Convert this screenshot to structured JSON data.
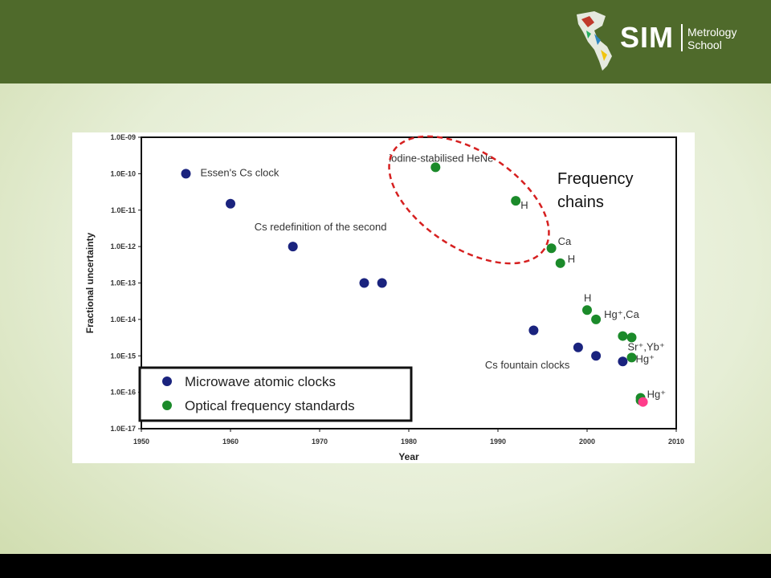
{
  "logo": {
    "name": "SIM",
    "line1": "Metrology",
    "line2": "School"
  },
  "annotation_freq": {
    "line1": "Frequency",
    "line2": "chains"
  },
  "colors": {
    "header": "#4f6a2b",
    "microwave": "#1a237e",
    "optical": "#1b8a2a",
    "hg_pink": "#ff3d8b",
    "ellipse": "#d62020"
  },
  "chart_data": {
    "type": "scatter",
    "xlabel": "Year",
    "ylabel": "Fractional uncertainty",
    "xlim": [
      1950,
      2010
    ],
    "ylim_exp": [
      -17,
      -9
    ],
    "y_scale": "log",
    "xticks": [
      "1950",
      "1960",
      "1970",
      "1980",
      "1990",
      "2000",
      "2010"
    ],
    "yticks": [
      "1.0E-17",
      "1.0E-16",
      "1.0E-15",
      "1.0E-14",
      "1.0E-13",
      "1.0E-12",
      "1.0E-11",
      "1.0E-10",
      "1.0E-09"
    ],
    "legend": {
      "placement": "bottom-left",
      "items": [
        "Microwave atomic clocks",
        "Optical frequency standards"
      ]
    },
    "series": [
      {
        "name": "Microwave atomic clocks",
        "points": [
          [
            1955,
            1e-10
          ],
          [
            1960,
            1.5e-11
          ],
          [
            1967,
            1e-12
          ],
          [
            1975,
            1e-13
          ],
          [
            1977,
            1e-13
          ],
          [
            1994,
            5e-15
          ],
          [
            1999,
            1.7e-15
          ],
          [
            2001,
            1e-15
          ],
          [
            2004,
            7e-16
          ]
        ]
      },
      {
        "name": "Optical frequency standards",
        "points": [
          [
            1983,
            1.5e-10
          ],
          [
            1992,
            1.8e-11
          ],
          [
            1996,
            9e-13
          ],
          [
            1997,
            3.5e-13
          ],
          [
            2000,
            1.8e-14
          ],
          [
            2001,
            1e-14
          ],
          [
            2004,
            3.5e-15
          ],
          [
            2005,
            3.2e-15
          ],
          [
            2005,
            9e-16
          ],
          [
            2006,
            7e-17
          ]
        ]
      },
      {
        "name": "Hg+",
        "points": [
          [
            2006,
            6e-17
          ]
        ]
      }
    ],
    "annotations": [
      {
        "text": "Essen's Cs clock",
        "x": 1955,
        "y": 1e-10
      },
      {
        "text": "Cs redefinition of the second",
        "x": 1967,
        "y": 1e-12
      },
      {
        "text": "iodine-stabilised HeNe",
        "x": 1983,
        "y": 1.5e-10
      },
      {
        "text": "H",
        "x": 1992,
        "y": 1.8e-11
      },
      {
        "text": "Ca",
        "x": 1996,
        "y": 9e-13
      },
      {
        "text": "H",
        "x": 1997,
        "y": 3.5e-13
      },
      {
        "text": "H",
        "x": 2000,
        "y": 1.8e-14
      },
      {
        "text": "Hg⁺,Ca",
        "x": 2001,
        "y": 1e-14
      },
      {
        "text": "Sr⁺,Yb⁺",
        "x": 2005,
        "y": 3.2e-15
      },
      {
        "text": "Cs fountain clocks",
        "x": 1999,
        "y": 1.7e-15
      },
      {
        "text": "Hg⁺",
        "x": 2005,
        "y": 9e-16
      },
      {
        "text": "Hg⁺",
        "x": 2006,
        "y": 6e-17
      }
    ]
  }
}
